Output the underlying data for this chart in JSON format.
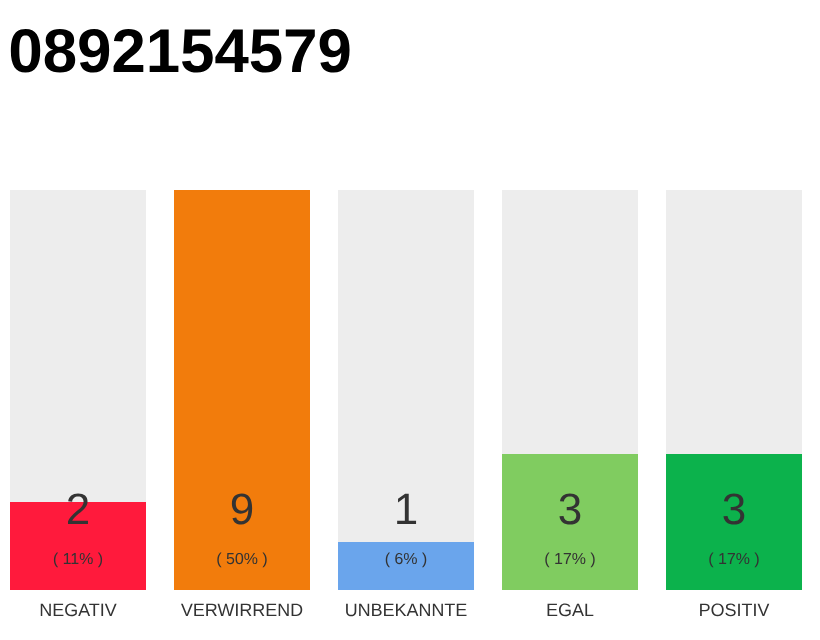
{
  "chart_data": {
    "type": "bar",
    "title": "0892154579",
    "categories": [
      "NEGATIV",
      "VERWIRREND",
      "UNBEKANNTE",
      "EGAL",
      "POSITIV"
    ],
    "values": [
      11,
      50,
      6,
      17,
      17
    ],
    "colors": [
      "#ff1a3c",
      "#f27c0c",
      "#6aa5ec",
      "#80cc60",
      "#0cb24c"
    ],
    "value_labels": [
      "( 11% )",
      "( 50% )",
      "( 6% )",
      "( 17% )",
      "( 17% )"
    ],
    "annotations": [
      "2",
      "9",
      "1",
      "3",
      "3"
    ]
  }
}
